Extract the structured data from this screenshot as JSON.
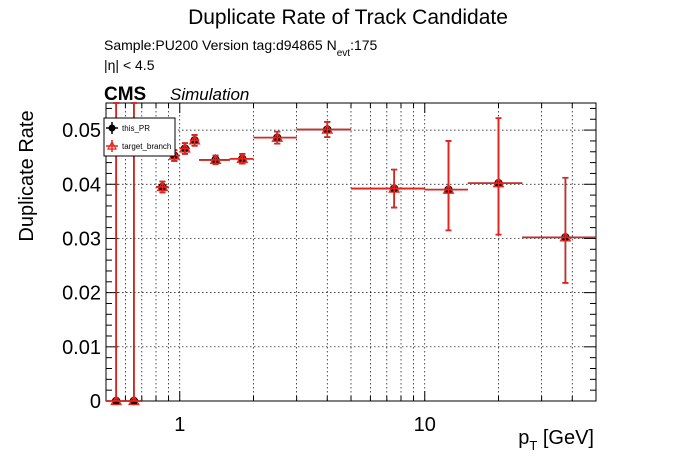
{
  "chart_data": {
    "type": "scatter",
    "title": "Duplicate Rate of Track Candidate",
    "subtitle_line1_prefix": "Sample:PU200   Version tag:d94865  N",
    "subtitle_line1_sub": "evt",
    "subtitle_line1_suffix": ":175",
    "subtitle_line2": "|η| < 4.5",
    "cms_label": "CMS",
    "simulation_label": "Simulation",
    "ylabel": "Duplicate Rate",
    "xlabel_main": "p",
    "xlabel_sub": "T",
    "xlabel_unit": " [GeV]",
    "x_scale": "log",
    "xlim": [
      0.5,
      50
    ],
    "ylim": [
      0,
      0.055
    ],
    "grid": true,
    "legend_placement": "top-left",
    "x_tick_labels": [
      {
        "value": 1,
        "label": "1"
      },
      {
        "value": 10,
        "label": "10"
      }
    ],
    "y_ticks": [
      {
        "value": 0,
        "label": "0"
      },
      {
        "value": 0.01,
        "label": "0.01"
      },
      {
        "value": 0.02,
        "label": "0.02"
      },
      {
        "value": 0.03,
        "label": "0.03"
      },
      {
        "value": 0.04,
        "label": "0.04"
      },
      {
        "value": 0.05,
        "label": "0.05"
      }
    ],
    "series": [
      {
        "name": "this_PR",
        "color": "#000000",
        "marker": "circle",
        "points": [
          {
            "x": 0.55,
            "xlo": 0.5,
            "xhi": 0.6,
            "y": 0.0,
            "ylo": 0.0,
            "yhi": 0.055
          },
          {
            "x": 0.65,
            "xlo": 0.6,
            "xhi": 0.7,
            "y": 0.0,
            "ylo": 0.0,
            "yhi": 0.055
          },
          {
            "x": 0.85,
            "xlo": 0.8,
            "xhi": 0.9,
            "y": 0.0395,
            "ylo": 0.0385,
            "yhi": 0.0405
          },
          {
            "x": 0.95,
            "xlo": 0.9,
            "xhi": 1.0,
            "y": 0.0453,
            "ylo": 0.0443,
            "yhi": 0.0463
          },
          {
            "x": 1.05,
            "xlo": 1.0,
            "xhi": 1.1,
            "y": 0.0466,
            "ylo": 0.0456,
            "yhi": 0.0476
          },
          {
            "x": 1.15,
            "xlo": 1.1,
            "xhi": 1.2,
            "y": 0.0481,
            "ylo": 0.0471,
            "yhi": 0.0491
          },
          {
            "x": 1.4,
            "xlo": 1.2,
            "xhi": 1.6,
            "y": 0.0445,
            "ylo": 0.0437,
            "yhi": 0.0453
          },
          {
            "x": 1.8,
            "xlo": 1.6,
            "xhi": 2.0,
            "y": 0.0447,
            "ylo": 0.0438,
            "yhi": 0.0456
          },
          {
            "x": 2.5,
            "xlo": 2.0,
            "xhi": 3.0,
            "y": 0.0486,
            "ylo": 0.0475,
            "yhi": 0.0497
          },
          {
            "x": 4.0,
            "xlo": 3.0,
            "xhi": 5.0,
            "y": 0.0501,
            "ylo": 0.0487,
            "yhi": 0.0515
          },
          {
            "x": 7.5,
            "xlo": 5.0,
            "xhi": 10.0,
            "y": 0.0392,
            "ylo": 0.0357,
            "yhi": 0.0427
          },
          {
            "x": 12.5,
            "xlo": 10.0,
            "xhi": 15.0,
            "y": 0.039,
            "ylo": 0.0315,
            "yhi": 0.048
          },
          {
            "x": 20.0,
            "xlo": 15.0,
            "xhi": 25.0,
            "y": 0.0402,
            "ylo": 0.0307,
            "yhi": 0.0522
          },
          {
            "x": 37.5,
            "xlo": 25.0,
            "xhi": 50.0,
            "y": 0.0302,
            "ylo": 0.0218,
            "yhi": 0.0412
          }
        ]
      },
      {
        "name": "target_branch",
        "color": "#e8231c",
        "marker": "triangle-open",
        "points": [
          {
            "x": 0.55,
            "xlo": 0.5,
            "xhi": 0.6,
            "y": 0.0,
            "ylo": 0.0,
            "yhi": 0.055
          },
          {
            "x": 0.65,
            "xlo": 0.6,
            "xhi": 0.7,
            "y": 0.0,
            "ylo": 0.0,
            "yhi": 0.055
          },
          {
            "x": 0.85,
            "xlo": 0.8,
            "xhi": 0.9,
            "y": 0.0395,
            "ylo": 0.0385,
            "yhi": 0.0405
          },
          {
            "x": 0.95,
            "xlo": 0.9,
            "xhi": 1.0,
            "y": 0.0453,
            "ylo": 0.0443,
            "yhi": 0.0463
          },
          {
            "x": 1.05,
            "xlo": 1.0,
            "xhi": 1.1,
            "y": 0.0466,
            "ylo": 0.0456,
            "yhi": 0.0476
          },
          {
            "x": 1.15,
            "xlo": 1.1,
            "xhi": 1.2,
            "y": 0.0481,
            "ylo": 0.0471,
            "yhi": 0.0491
          },
          {
            "x": 1.4,
            "xlo": 1.2,
            "xhi": 1.6,
            "y": 0.0445,
            "ylo": 0.0437,
            "yhi": 0.0453
          },
          {
            "x": 1.8,
            "xlo": 1.6,
            "xhi": 2.0,
            "y": 0.0447,
            "ylo": 0.0438,
            "yhi": 0.0456
          },
          {
            "x": 2.5,
            "xlo": 2.0,
            "xhi": 3.0,
            "y": 0.0486,
            "ylo": 0.0475,
            "yhi": 0.0497
          },
          {
            "x": 4.0,
            "xlo": 3.0,
            "xhi": 5.0,
            "y": 0.0501,
            "ylo": 0.0487,
            "yhi": 0.0515
          },
          {
            "x": 7.5,
            "xlo": 5.0,
            "xhi": 10.0,
            "y": 0.0392,
            "ylo": 0.0357,
            "yhi": 0.0427
          },
          {
            "x": 12.5,
            "xlo": 10.0,
            "xhi": 15.0,
            "y": 0.039,
            "ylo": 0.0315,
            "yhi": 0.048
          },
          {
            "x": 20.0,
            "xlo": 15.0,
            "xhi": 25.0,
            "y": 0.0402,
            "ylo": 0.0307,
            "yhi": 0.0522
          },
          {
            "x": 37.5,
            "xlo": 25.0,
            "xhi": 50.0,
            "y": 0.0302,
            "ylo": 0.0218,
            "yhi": 0.0412
          }
        ]
      }
    ]
  }
}
